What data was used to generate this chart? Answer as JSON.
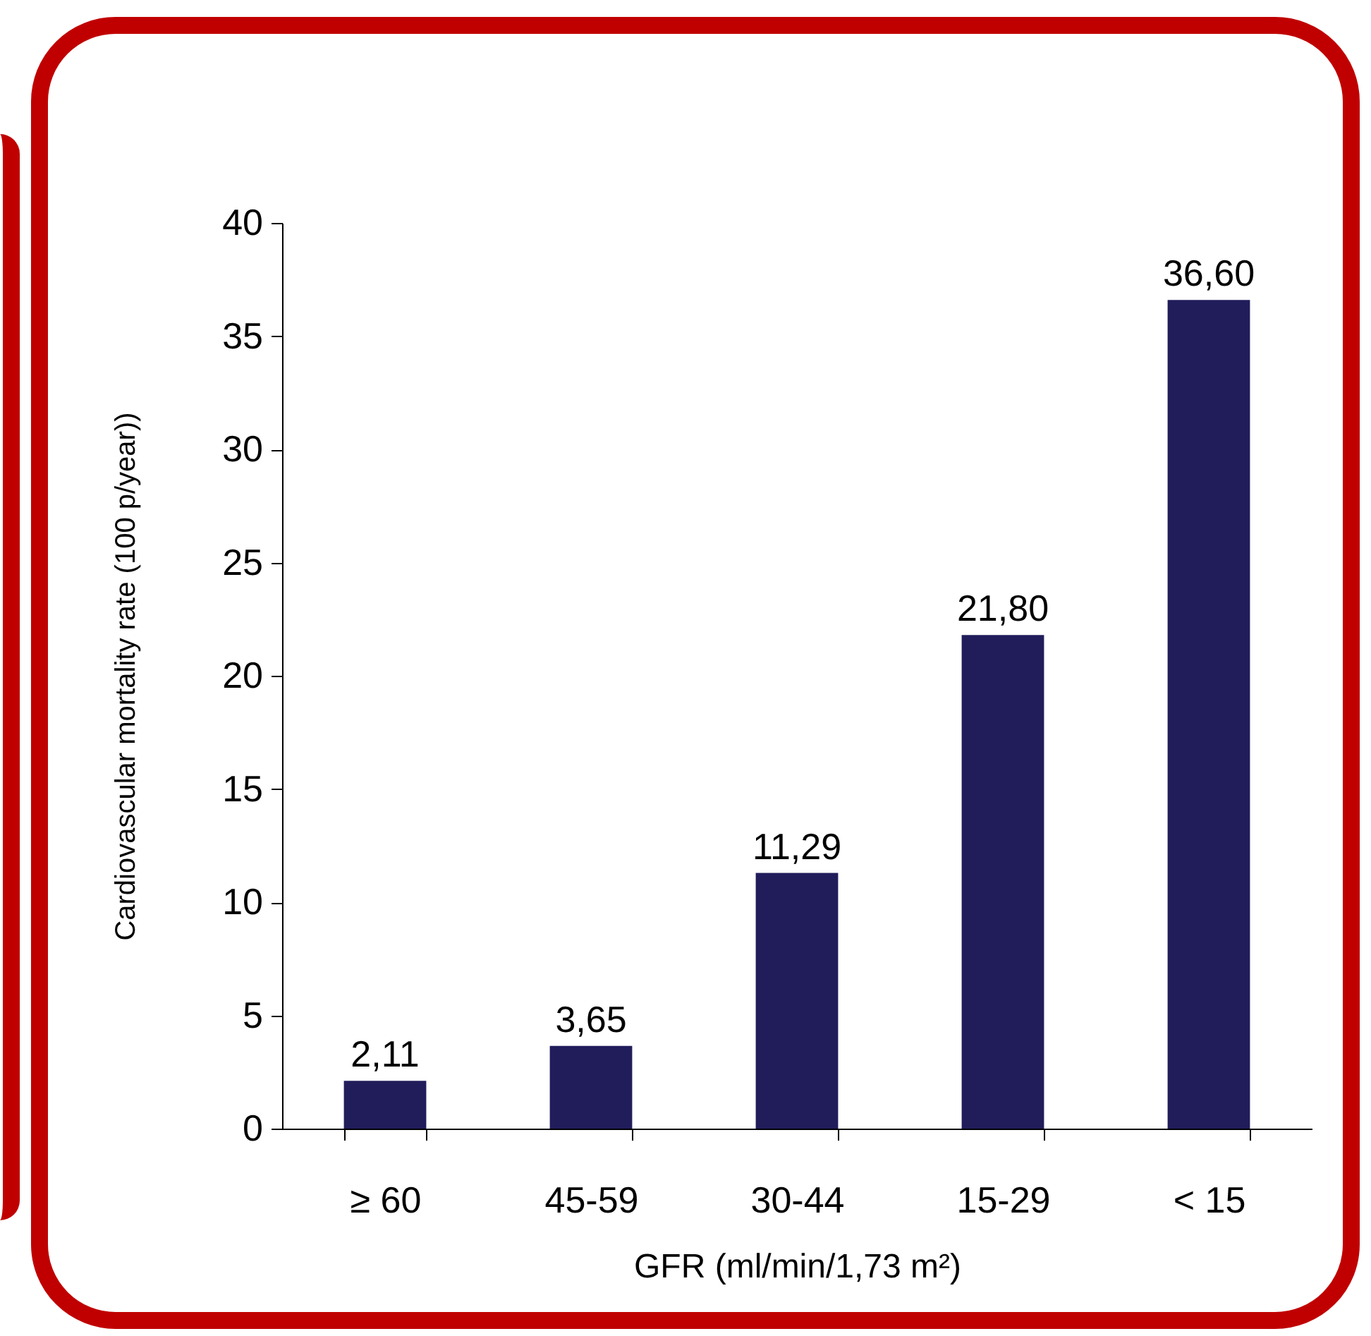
{
  "chart_data": {
    "type": "bar",
    "xlabel": "GFR (ml/min/1,73 m²)",
    "ylabel": "Cardiovascular mortality rate (100 p/year))",
    "categories": [
      "≥ 60",
      "45-59",
      "30-44",
      "15-29",
      "< 15"
    ],
    "values": [
      2.11,
      3.65,
      11.29,
      21.8,
      36.6
    ],
    "value_labels": [
      "2,11",
      "3,65",
      "11,29",
      "21,80",
      "36,60"
    ],
    "color": "#211d5b",
    "ylim": [
      0,
      40
    ],
    "yticks": [
      0,
      5,
      10,
      15,
      20,
      25,
      30,
      35,
      40
    ],
    "grid": false
  }
}
